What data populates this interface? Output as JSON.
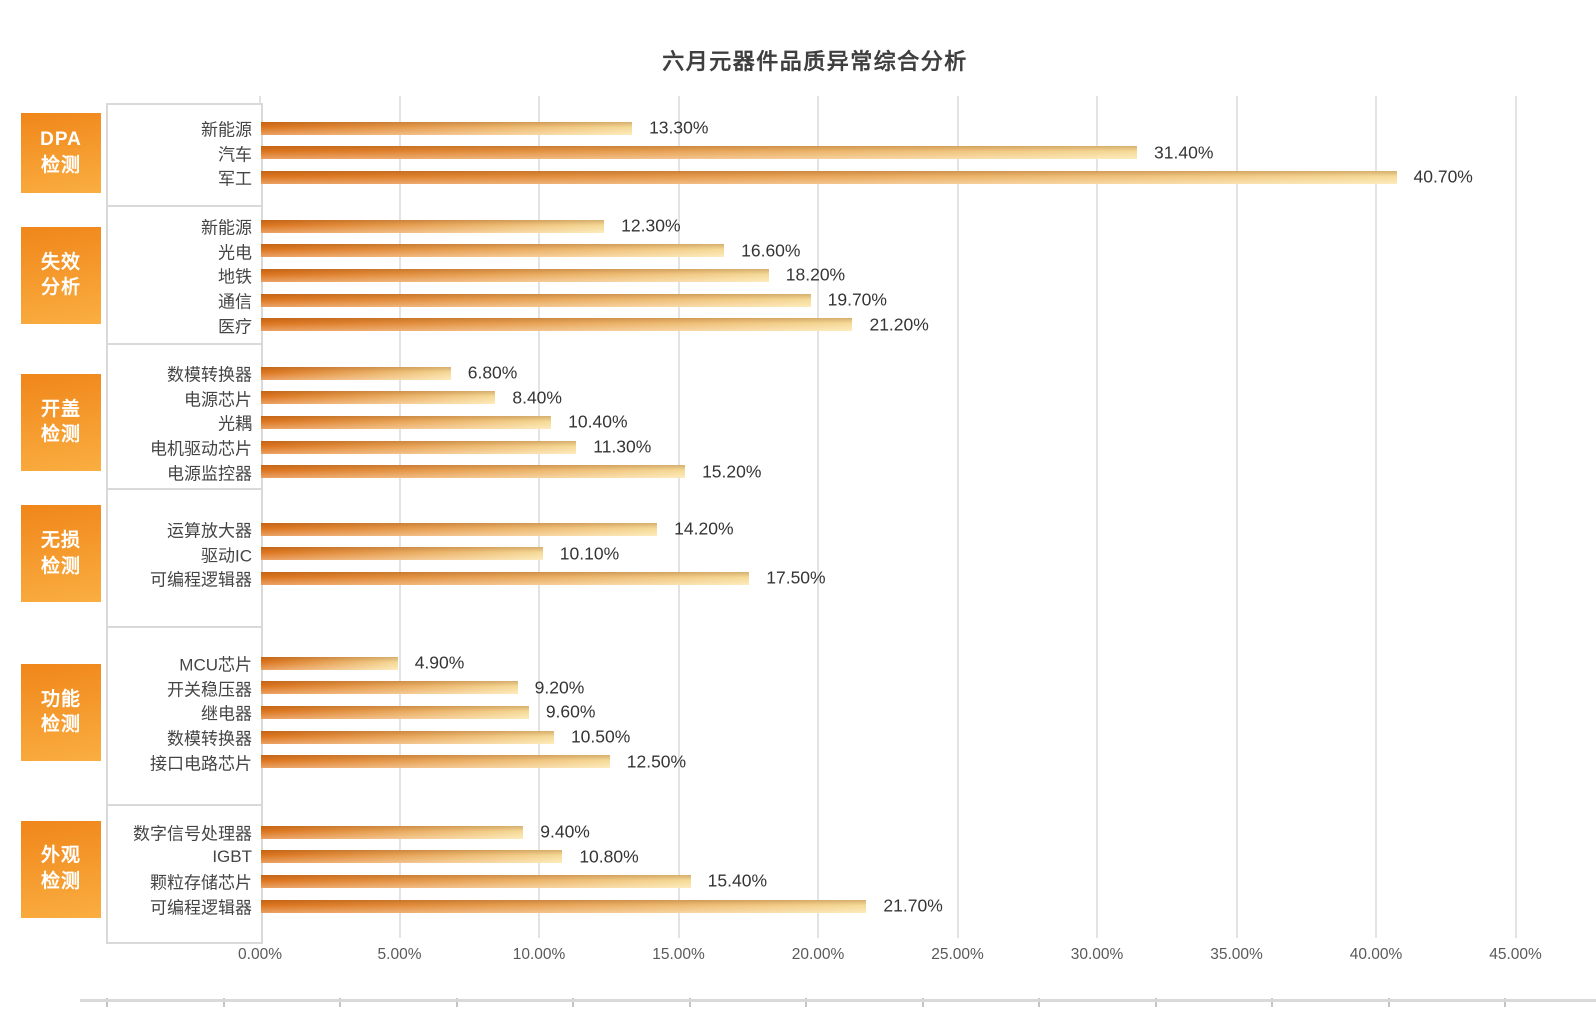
{
  "title": "六月元器件品质异常综合分析",
  "colors": {
    "bar_gradient_start": "#e1771f",
    "bar_gradient_end": "#fce3a0",
    "badge_gradient_top": "#f0861a",
    "badge_gradient_bottom": "#faae41",
    "gridline": "#e3e3e3",
    "box_border": "#d9d9d9",
    "title_text": "#3f3f3f",
    "axis_text": "#595959"
  },
  "chart_data": {
    "type": "bar",
    "orientation": "horizontal",
    "title": "六月元器件品质异常综合分析",
    "xlabel": "",
    "ylabel": "",
    "grid": true,
    "legend": false,
    "axis": {
      "min": 0,
      "max": 45,
      "step": 5,
      "tick_labels": [
        "0.00%",
        "5.00%",
        "10.00%",
        "15.00%",
        "20.00%",
        "25.00%",
        "30.00%",
        "35.00%",
        "40.00%",
        "45.00%"
      ]
    },
    "groups": [
      {
        "name": "DPA检测",
        "name_lines": [
          "DPA",
          "检测"
        ],
        "items": [
          {
            "label": "新能源",
            "value": 13.3,
            "display": "13.30%"
          },
          {
            "label": "汽车",
            "value": 31.4,
            "display": "31.40%"
          },
          {
            "label": "军工",
            "value": 40.7,
            "display": "40.70%"
          }
        ]
      },
      {
        "name": "失效分析",
        "name_lines": [
          "失效",
          "分析"
        ],
        "items": [
          {
            "label": "新能源",
            "value": 12.3,
            "display": "12.30%"
          },
          {
            "label": "光电",
            "value": 16.6,
            "display": "16.60%"
          },
          {
            "label": "地铁",
            "value": 18.2,
            "display": "18.20%"
          },
          {
            "label": "通信",
            "value": 19.7,
            "display": "19.70%"
          },
          {
            "label": "医疗",
            "value": 21.2,
            "display": "21.20%"
          }
        ]
      },
      {
        "name": "开盖检测",
        "name_lines": [
          "开盖",
          "检测"
        ],
        "items": [
          {
            "label": "数模转换器",
            "value": 6.8,
            "display": "6.80%"
          },
          {
            "label": "电源芯片",
            "value": 8.4,
            "display": "8.40%"
          },
          {
            "label": "光耦",
            "value": 10.4,
            "display": "10.40%"
          },
          {
            "label": "电机驱动芯片",
            "value": 11.3,
            "display": "11.30%"
          },
          {
            "label": "电源监控器",
            "value": 15.2,
            "display": "15.20%"
          }
        ]
      },
      {
        "name": "无损检测",
        "name_lines": [
          "无损",
          "检测"
        ],
        "items": [
          {
            "label": "运算放大器",
            "value": 14.2,
            "display": "14.20%"
          },
          {
            "label": "驱动IC",
            "value": 10.1,
            "display": "10.10%"
          },
          {
            "label": "可编程逻辑器",
            "value": 17.5,
            "display": "17.50%"
          }
        ]
      },
      {
        "name": "功能检测",
        "name_lines": [
          "功能",
          "检测"
        ],
        "items": [
          {
            "label": "MCU芯片",
            "value": 4.9,
            "display": "4.90%"
          },
          {
            "label": "开关稳压器",
            "value": 9.2,
            "display": "9.20%"
          },
          {
            "label": "继电器",
            "value": 9.6,
            "display": "9.60%"
          },
          {
            "label": "数模转换器",
            "value": 10.5,
            "display": "10.50%"
          },
          {
            "label": "接口电路芯片",
            "value": 12.5,
            "display": "12.50%"
          }
        ]
      },
      {
        "name": "外观检测",
        "name_lines": [
          "外观",
          "检测"
        ],
        "items": [
          {
            "label": "数字信号处理器",
            "value": 9.4,
            "display": "9.40%"
          },
          {
            "label": "IGBT",
            "value": 10.8,
            "display": "10.80%"
          },
          {
            "label": "颗粒存储芯片",
            "value": 15.4,
            "display": "15.40%"
          },
          {
            "label": "可编程逻辑器",
            "value": 21.7,
            "display": "21.70%"
          }
        ]
      }
    ]
  }
}
